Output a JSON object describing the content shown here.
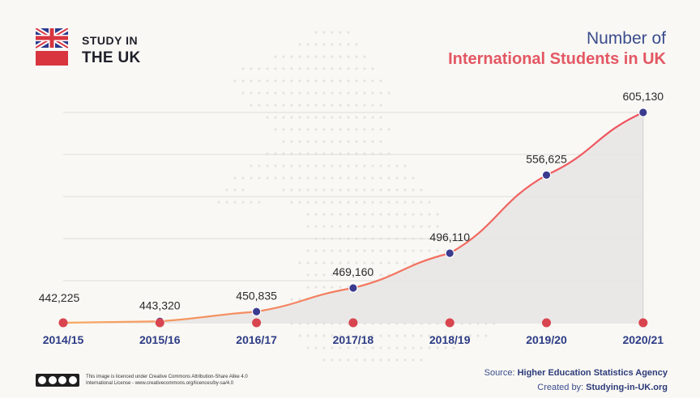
{
  "header": {
    "logo_line1": "STUDY IN",
    "logo_line2": "THE UK",
    "title_line1": "Number of",
    "title_line2": "International Students in UK"
  },
  "chart_data": {
    "type": "area",
    "title": "Number of International Students in UK",
    "categories": [
      "2014/15",
      "2015/16",
      "2016/17",
      "2017/18",
      "2018/19",
      "2019/20",
      "2020/21"
    ],
    "data_labels": [
      "442,225",
      "443,320",
      "450,835",
      "469,160",
      "496,110",
      "556,625",
      "605,130"
    ],
    "series": [
      {
        "values": [
          442225,
          443320,
          450835,
          469160,
          496110,
          556625,
          605130
        ]
      }
    ],
    "grid": "horizontal",
    "colors": {
      "line_start": "#f7a862",
      "line_end": "#ee4f5f",
      "marker": "#3a3b8f",
      "baseline_dot": "#d8454f",
      "tick_label": "#2d3c85",
      "area_fill": "#e7e5e4"
    }
  },
  "footer": {
    "license_line1": "This image is licenced under Creative Commons Attribution-Share Alike 4.0",
    "license_line2": "International License - www.creativecommons.org/licences/by-sa/4.0",
    "source_label": "Source: ",
    "source_value": "Higher Education Statistics Agency",
    "created_label": "Created by: ",
    "created_value": "Studying-in-UK.org"
  }
}
